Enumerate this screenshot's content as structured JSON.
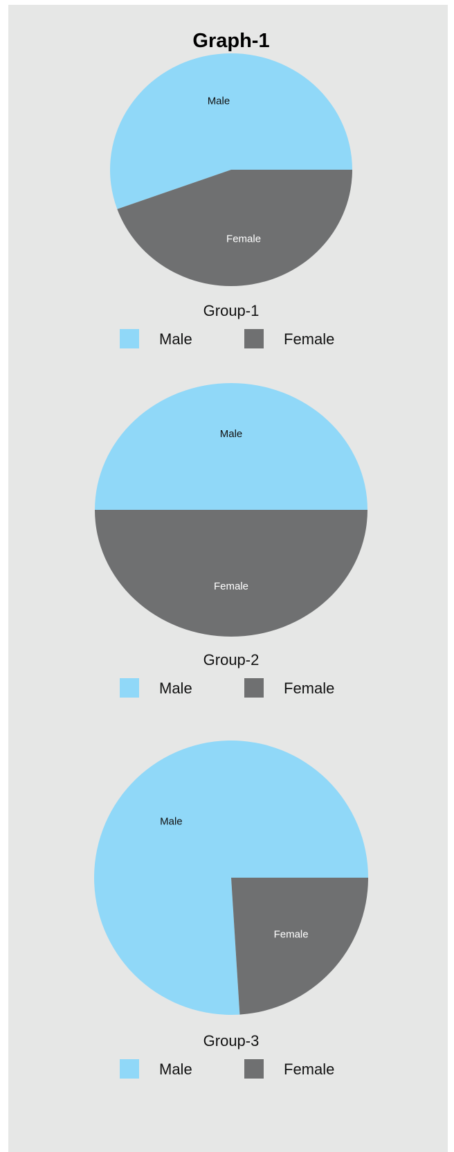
{
  "title": "Graph-1",
  "colors": {
    "male": "#90d8f8",
    "female": "#6f7071",
    "background": "#e6e7e6"
  },
  "chart_data": [
    {
      "type": "pie",
      "title": "Group-1",
      "categories": [
        "Male",
        "Female"
      ],
      "values": [
        55.5,
        44.5
      ],
      "legend": {
        "position": "bottom",
        "labels": [
          "Male",
          "Female"
        ]
      }
    },
    {
      "type": "pie",
      "title": "Group-2",
      "categories": [
        "Male",
        "Female"
      ],
      "values": [
        50,
        50
      ],
      "legend": {
        "position": "bottom",
        "labels": [
          "Male",
          "Female"
        ]
      }
    },
    {
      "type": "pie",
      "title": "Group-3",
      "categories": [
        "Male",
        "Female"
      ],
      "values": [
        76,
        24
      ],
      "legend": {
        "position": "bottom",
        "labels": [
          "Male",
          "Female"
        ]
      }
    }
  ]
}
